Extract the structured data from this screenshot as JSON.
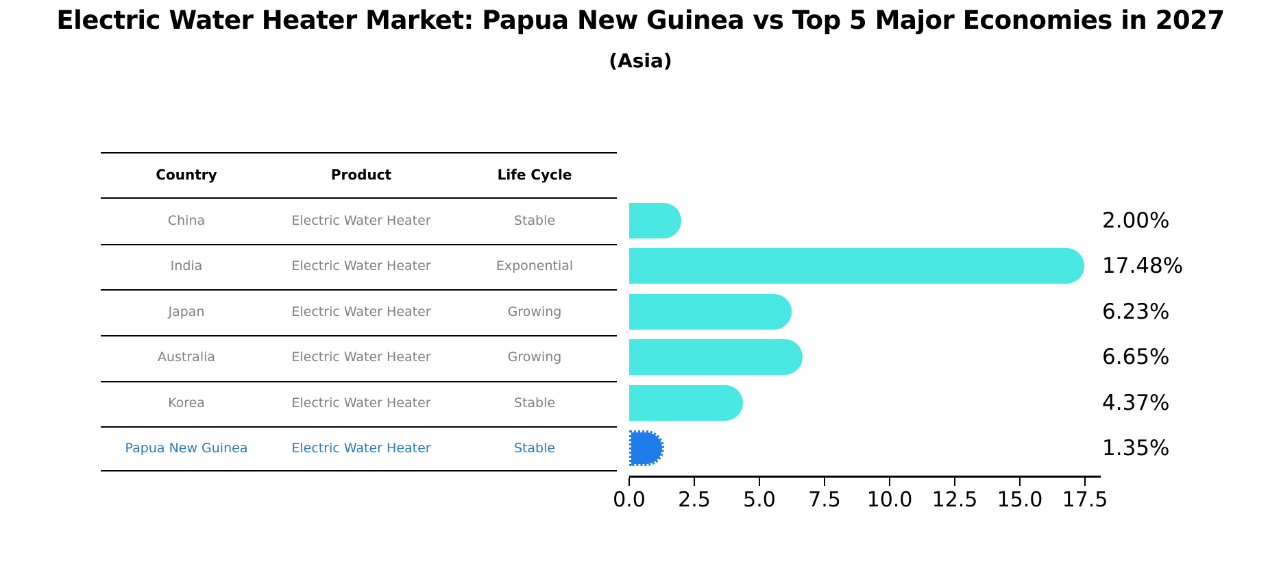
{
  "header": {
    "title": "Electric Water Heater Market: Papua New Guinea vs Top 5 Major Economies in 2027",
    "subtitle": "(Asia)"
  },
  "table": {
    "headers": [
      "Country",
      "Product",
      "Life Cycle"
    ],
    "rows": [
      {
        "country": "China",
        "product": "Electric Water Heater",
        "life_cycle": "Stable",
        "highlighted": false
      },
      {
        "country": "India",
        "product": "Electric Water Heater",
        "life_cycle": "Exponential",
        "highlighted": false
      },
      {
        "country": "Japan",
        "product": "Electric Water Heater",
        "life_cycle": "Growing",
        "highlighted": false
      },
      {
        "country": "Australia",
        "product": "Electric Water Heater",
        "life_cycle": "Growing",
        "highlighted": false
      },
      {
        "country": "Korea",
        "product": "Electric Water Heater",
        "life_cycle": "Stable",
        "highlighted": false
      },
      {
        "country": "Papua New Guinea",
        "product": "Electric Water Heater",
        "life_cycle": "Stable",
        "highlighted": true
      }
    ]
  },
  "chart_data": {
    "type": "bar",
    "orientation": "horizontal",
    "title": "Electric Water Heater Market: Papua New Guinea vs Top 5 Major Economies in 2027 (Asia)",
    "categories": [
      "China",
      "India",
      "Japan",
      "Australia",
      "Korea",
      "Papua New Guinea"
    ],
    "values": [
      2.0,
      17.48,
      6.23,
      6.65,
      4.37,
      1.35
    ],
    "value_labels": [
      "2.00%",
      "17.48%",
      "6.23%",
      "6.65%",
      "4.37%",
      "1.35%"
    ],
    "x_ticks": [
      0.0,
      2.5,
      5.0,
      7.5,
      10.0,
      12.5,
      15.0,
      17.5
    ],
    "x_tick_labels": [
      "0.0",
      "2.5",
      "5.0",
      "7.5",
      "10.0",
      "12.5",
      "15.0",
      "17.5"
    ],
    "xlim": [
      0,
      18.2
    ],
    "grid": false,
    "legend": "none",
    "highlight_index": 5
  },
  "colors": {
    "bar": "#4AE8E3",
    "highlight_bar": "#1E7DE8",
    "highlight_text": "#2878BE",
    "table_text_gray": "#808080",
    "ink": "#000000",
    "background": "#ffffff"
  }
}
